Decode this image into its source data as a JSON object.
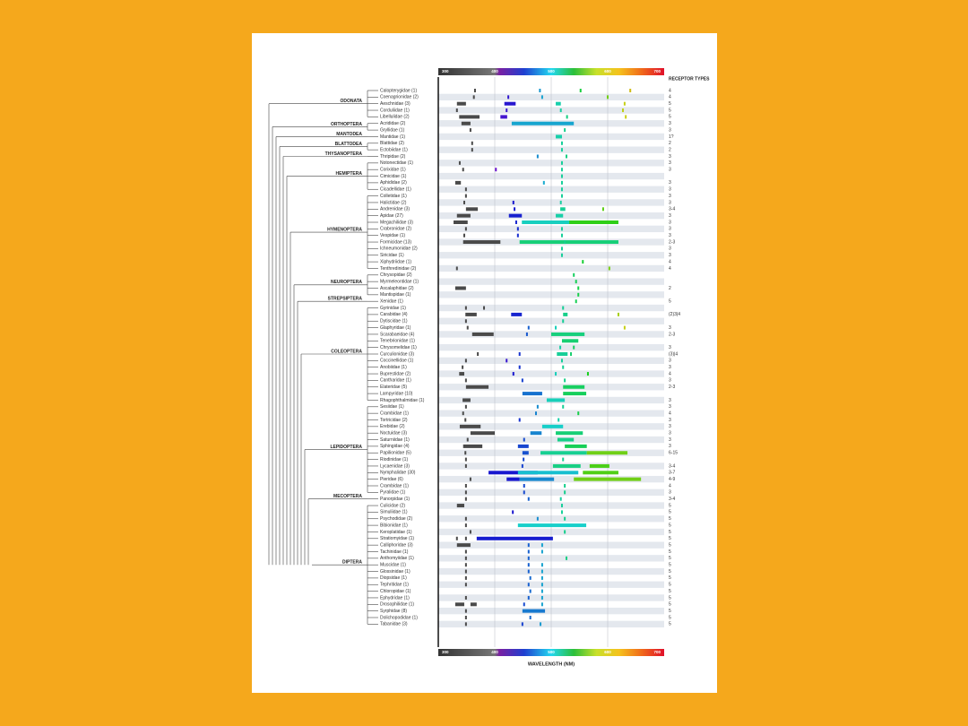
{
  "chart_data": {
    "type": "spectral",
    "xlabel": "WAVELENGTH (NM)",
    "receptor_header": "RECEPTOR TYPES",
    "xlim": [
      300,
      700
    ],
    "xticks": [
      300,
      400,
      500,
      600,
      700
    ],
    "grid": true,
    "orders": [
      {
        "name": "ODONATA",
        "families": [
          {
            "name": "Calopterygidae (1)",
            "receptors": "4",
            "marks": [
              365,
              480,
              552,
              640
            ]
          },
          {
            "name": "Coenagrionidae (2)",
            "receptors": "4",
            "marks": [
              363,
              424,
              484,
              600
            ]
          },
          {
            "name": "Aeschnidae (3)",
            "receptors": "5",
            "marks": [
              [
                333,
                349
              ],
              [
                417,
                437
              ],
              [
                508,
                517
              ],
              630
            ]
          },
          {
            "name": "Corduliidae (1)",
            "receptors": "5",
            "marks": [
              333,
              421,
              517,
              627
            ]
          },
          {
            "name": "Libellulidae (2)",
            "receptors": "5",
            "marks": [
              [
                337,
                373
              ],
              [
                410,
                422
              ],
              528,
              632
            ]
          }
        ]
      },
      {
        "name": "ORTHOPTERA",
        "families": [
          {
            "name": "Acrididae (2)",
            "receptors": "3",
            "marks": [
              [
                341,
                357
              ],
              [
                430,
                540
              ]
            ]
          },
          {
            "name": "Gryllidae (1)",
            "receptors": "3",
            "marks": [
              357,
              524
            ]
          }
        ]
      },
      {
        "name": "MANTODEA",
        "families": [
          {
            "name": "Mantidae (1)",
            "receptors": "1?",
            "marks": [
              [
                508,
                519
              ]
            ]
          }
        ]
      },
      {
        "name": "BLATTODEA",
        "families": [
          {
            "name": "Blattidae (2)",
            "receptors": "2",
            "marks": [
              360,
              519
            ]
          },
          {
            "name": "Ectobiidae (1)",
            "receptors": "2",
            "marks": [
              360,
              519
            ]
          }
        ]
      },
      {
        "name": "THYSANOPTERA",
        "families": [
          {
            "name": "Thripidae (2)",
            "receptors": "3",
            "marks": [
              476,
              527
            ]
          }
        ]
      },
      {
        "name": "HEMIPTERA",
        "families": [
          {
            "name": "Notonectidae (1)",
            "receptors": "3",
            "marks": [
              338,
              519
            ]
          },
          {
            "name": "Corixidae (1)",
            "receptors": "3",
            "marks": [
              344,
              402,
              519
            ]
          },
          {
            "name": "Cimicidae (1)",
            "marks": [
              519
            ]
          },
          {
            "name": "Aphididae (2)",
            "receptors": "3",
            "marks": [
              [
                330,
                340
              ],
              487,
              519
            ]
          },
          {
            "name": "Cicadellidae (1)",
            "receptors": "3",
            "marks": [
              349,
              519
            ]
          }
        ]
      },
      {
        "name": "HYMENOPTERA",
        "families": [
          {
            "name": "Colletidae (1)",
            "receptors": "3",
            "marks": [
              349,
              519
            ]
          },
          {
            "name": "Halictidae (2)",
            "receptors": "3",
            "marks": [
              346,
              433,
              517
            ]
          },
          {
            "name": "Andrenidae (3)",
            "receptors": "3-4",
            "marks": [
              [
                349,
                370
              ],
              435,
              [
                516,
                525
              ],
              592
            ]
          },
          {
            "name": "Apidae (27)",
            "receptors": "3",
            "marks": [
              [
                333,
                357
              ],
              [
                425,
                448
              ],
              [
                508,
                521
              ]
            ]
          },
          {
            "name": "Megachilidae (3)",
            "receptors": "3",
            "marks": [
              [
                327,
                352
              ],
              438,
              [
                448,
                563
              ],
              [
                532,
                619
              ]
            ]
          },
          {
            "name": "Crabronidae (2)",
            "receptors": "3",
            "marks": [
              349,
              441,
              519
            ]
          },
          {
            "name": "Vespidae (1)",
            "receptors": "3",
            "marks": [
              346,
              441,
              519
            ]
          },
          {
            "name": "Formicidae (13)",
            "receptors": "2-3",
            "marks": [
              [
                344,
                410
              ],
              [
                444,
                619
              ],
              524
            ]
          },
          {
            "name": "Ichneumonidae (2)",
            "receptors": "3",
            "marks": [
              519
            ]
          },
          {
            "name": "Siricidae (1)",
            "receptors": "3",
            "marks": [
              519
            ]
          },
          {
            "name": "Xiphydriidae (1)",
            "receptors": "4",
            "marks": [
              556
            ]
          },
          {
            "name": "Tenthredinidae (2)",
            "receptors": "4",
            "marks": [
              333,
              603
            ]
          }
        ]
      },
      {
        "name": "NEUROPTERA",
        "families": [
          {
            "name": "Chrysopidae (2)",
            "marks": [
              540
            ]
          },
          {
            "name": "Myrmeleontidae (1)",
            "marks": [
              544
            ]
          },
          {
            "name": "Ascalaphidae (2)",
            "receptors": "2",
            "marks": [
              [
                330,
                349
              ],
              548
            ]
          },
          {
            "name": "Mantispidae (1)",
            "marks": [
              548
            ]
          }
        ]
      },
      {
        "name": "STREPSIPTERA",
        "families": [
          {
            "name": "Xenidae (1)",
            "receptors": "5",
            "marks": [
              544
            ]
          }
        ]
      },
      {
        "name": "COLEOPTERA",
        "families": [
          {
            "name": "Gyrinidae (1)",
            "marks": [
              349,
              381,
              521
            ]
          },
          {
            "name": "Carabidae (4)",
            "receptors": "(2)3|4",
            "marks": [
              [
                348,
                368
              ],
              [
                429,
                448
              ],
              [
                521,
                529
              ],
              619
            ]
          },
          {
            "name": "Dytiscidae (1)",
            "marks": [
              349,
              521
            ]
          },
          {
            "name": "Glaphyridae (1)",
            "receptors": "3",
            "marks": [
              352,
              460,
              508,
              630
            ]
          },
          {
            "name": "Scarabaeidae (4)",
            "receptors": "2-3",
            "marks": [
              [
                360,
                398
              ],
              457,
              [
                500,
                559
              ]
            ]
          },
          {
            "name": "Tenebrionidae (1)",
            "marks": [
              [
                519,
                548
              ]
            ]
          },
          {
            "name": "Chrysomelidae (1)",
            "receptors": "3",
            "marks": [
              516,
              540
            ]
          },
          {
            "name": "Curculionidae (3)",
            "receptors": "(3)|4",
            "marks": [
              370,
              444,
              [
                510,
                529
              ],
              535
            ]
          },
          {
            "name": "Coccinellidae (1)",
            "receptors": "3",
            "marks": [
              349,
              421,
              519
            ]
          },
          {
            "name": "Anobiidae (1)",
            "receptors": "3",
            "marks": [
              343,
              444,
              521
            ]
          },
          {
            "name": "Buprestidae (2)",
            "receptors": "4",
            "marks": [
              [
                337,
                346
              ],
              433,
              508,
              565
            ]
          },
          {
            "name": "Cantharidae (1)",
            "receptors": "3",
            "marks": [
              349,
              449,
              524
            ]
          },
          {
            "name": "Elateridae (5)",
            "receptors": "2-3",
            "marks": [
              [
                349,
                389
              ],
              [
                521,
                559
              ]
            ]
          },
          {
            "name": "Lampyridae (10)",
            "marks": [
              [
                449,
                484
              ],
              [
                521,
                562
              ]
            ]
          },
          {
            "name": "Rhagophthalmidae (1)",
            "receptors": "3",
            "marks": [
              [
                343,
                357
              ],
              [
                492,
                524
              ]
            ]
          }
        ]
      },
      {
        "name": "LEPIDOPTERA",
        "families": [
          {
            "name": "Sesiidae (1)",
            "receptors": "3",
            "marks": [
              349,
              476,
              521
            ]
          },
          {
            "name": "Crambidae (1)",
            "receptors": "4",
            "marks": [
              344,
              473,
              548
            ]
          },
          {
            "name": "Tortricidae (2)",
            "receptors": "3",
            "marks": [
              348,
              444,
              513
            ]
          },
          {
            "name": "Erebidae (2)",
            "receptors": "3",
            "marks": [
              [
                338,
                375
              ],
              [
                484,
                521
              ]
            ]
          },
          {
            "name": "Noctuidae (3)",
            "receptors": "3",
            "marks": [
              [
                357,
                400
              ],
              [
                463,
                483
              ],
              [
                508,
                556
              ]
            ]
          },
          {
            "name": "Saturniidae (1)",
            "receptors": "3",
            "marks": [
              352,
              452,
              [
                511,
                540
              ]
            ]
          },
          {
            "name": "Sphingidae (4)",
            "receptors": "3",
            "marks": [
              [
                344,
                378
              ],
              [
                441,
                460
              ],
              [
                524,
                563
              ]
            ]
          },
          {
            "name": "Papilionidae (5)",
            "receptors": "6-15",
            "marks": [
              348,
              [
                449,
                460
              ],
              [
                481,
                563
              ],
              [
                563,
                635
              ]
            ]
          },
          {
            "name": "Riodinidae (1)",
            "marks": [
              349,
              451,
              521
            ]
          },
          {
            "name": "Lycaenidae (3)",
            "receptors": "3-4",
            "marks": [
              349,
              449,
              [
                503,
                552
              ],
              [
                568,
                603
              ]
            ]
          },
          {
            "name": "Nymphalidae (30)",
            "receptors": "3-7",
            "marks": [
              [
                389,
                476
              ],
              [
                441,
                548
              ],
              [
                556,
                619
              ]
            ]
          },
          {
            "name": "Pieridae (6)",
            "receptors": "4-9",
            "marks": [
              357,
              [
                421,
                444
              ],
              [
                444,
                505
              ],
              [
                540,
                659
              ]
            ]
          },
          {
            "name": "Crambidae (1)",
            "receptors": "4",
            "marks": [
              349,
              452,
              524
            ]
          },
          {
            "name": "Pyralidae (1)",
            "receptors": "3",
            "marks": [
              349,
              452,
              524
            ]
          }
        ]
      },
      {
        "name": "MECOPTERA",
        "families": [
          {
            "name": "Panorpidae (1)",
            "receptors": "3-4",
            "marks": [
              349,
              460,
              517
            ]
          }
        ]
      },
      {
        "name": "DIPTERA",
        "families": [
          {
            "name": "Culicidae (2)",
            "receptors": "5",
            "marks": [
              [
                333,
                346
              ],
              519
            ]
          },
          {
            "name": "Simuliidae (1)",
            "receptors": "5",
            "marks": [
              432,
              519
            ]
          },
          {
            "name": "Psychodidae (2)",
            "receptors": "5",
            "marks": [
              349,
              476,
              524
            ]
          },
          {
            "name": "Bibionidae (1)",
            "receptors": "5",
            "marks": [
              349,
              [
                441,
                562
              ]
            ]
          },
          {
            "name": "Keroplatidae (1)",
            "receptors": "5",
            "marks": [
              357,
              524
            ]
          },
          {
            "name": "Stratiomyidae (1)",
            "receptors": "5",
            "marks": [
              333,
              349,
              [
                368,
                503
              ]
            ]
          },
          {
            "name": "Calliphoridae (3)",
            "receptors": "5",
            "marks": [
              [
                333,
                357
              ],
              460,
              484
            ]
          },
          {
            "name": "Tachinidae (1)",
            "receptors": "5",
            "marks": [
              349,
              460,
              484
            ]
          },
          {
            "name": "Anthomyiidae (1)",
            "receptors": "5",
            "marks": [
              349,
              460,
              527
            ]
          },
          {
            "name": "Muscidae (1)",
            "receptors": "5",
            "marks": [
              349,
              460,
              484
            ]
          },
          {
            "name": "Glossinidae (1)",
            "receptors": "5",
            "marks": [
              349,
              460,
              484
            ]
          },
          {
            "name": "Diopsidae (1)",
            "receptors": "5",
            "marks": [
              349,
              463,
              484
            ]
          },
          {
            "name": "Tephritidae (1)",
            "receptors": "5",
            "marks": [
              349,
              460,
              484
            ]
          },
          {
            "name": "Chloropidae (1)",
            "receptors": "5",
            "marks": [
              463,
              484
            ]
          },
          {
            "name": "Ephydridae (1)",
            "receptors": "5",
            "marks": [
              349,
              460,
              484
            ]
          },
          {
            "name": "Drosophilidae (1)",
            "receptors": "5",
            "marks": [
              [
                330,
                346
              ],
              [
                357,
                368
              ],
              452,
              484
            ]
          },
          {
            "name": "Syrphidae (8)",
            "receptors": "5",
            "marks": [
              349,
              [
                449,
                489
              ]
            ]
          },
          {
            "name": "Dolichopodidae (1)",
            "receptors": "5",
            "marks": [
              349,
              463
            ]
          },
          {
            "name": "Tabanidae (3)",
            "receptors": "5",
            "marks": [
              349,
              449,
              481
            ]
          }
        ]
      }
    ]
  }
}
